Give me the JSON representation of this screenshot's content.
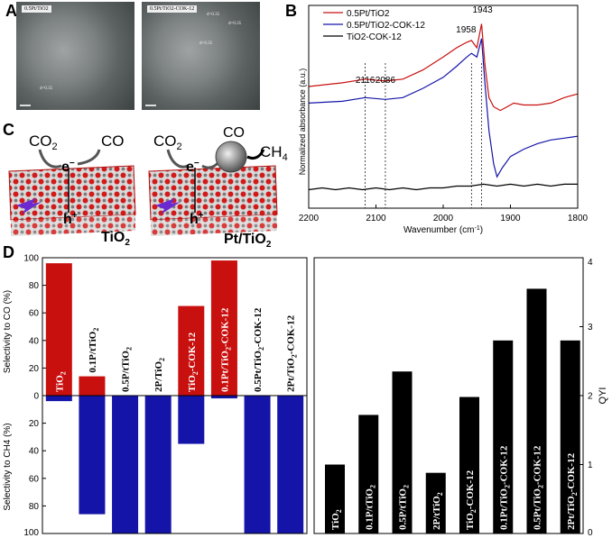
{
  "panels": {
    "a": {
      "label": "A",
      "images": [
        {
          "caption": "0.5Pt/TiO2",
          "d_spacings": [
            "d=0.35"
          ]
        },
        {
          "caption": "0.5Pt/TiO2-COK-12",
          "d_spacings": [
            "d=0.35",
            "d=0.35",
            "d=0.35"
          ]
        }
      ]
    },
    "b": {
      "label": "B"
    },
    "c": {
      "label": "C",
      "left": {
        "molecule_in": "CO",
        "molecule_in_sub": "2",
        "molecule_out": "CO",
        "electron": "e",
        "electron_sup": "−",
        "hole": "h",
        "hole_sup": "+",
        "material": "TiO",
        "material_sub": "2"
      },
      "right": {
        "molecule_in": "CO",
        "molecule_in_sub": "2",
        "adsorbed": "CO",
        "product": "CH",
        "product_sub": "4",
        "electron": "e",
        "electron_sup": "−",
        "hole": "h",
        "hole_sup": "+",
        "material": "Pt/TiO",
        "material_sub": "2"
      }
    },
    "d": {
      "label": "D"
    }
  },
  "colors": {
    "red": "#c8100f",
    "blue": "#1414a8",
    "black": "#000000"
  },
  "chart_data": [
    {
      "type": "line",
      "xlabel": "Wavenumber (cm",
      "xlabel_sup": "-1",
      "xlabel_tail": ")",
      "ylabel": "Normalized absorbance (a.u.)",
      "xlim": [
        2200,
        1800
      ],
      "xticks": [
        "2200",
        "2100",
        "2000",
        "1900",
        "1800"
      ],
      "legend": [
        "0.5Pt/TiO2",
        "0.5Pt/TiO2-COK-12",
        "TiO2-COK-12"
      ],
      "annotations": [
        "2116",
        "2086",
        "1958",
        "1943"
      ],
      "series": [
        {
          "name": "0.5Pt/TiO2",
          "x": [
            2200,
            2150,
            2116,
            2086,
            2060,
            2030,
            2000,
            1980,
            1965,
            1958,
            1950,
            1943,
            1938,
            1932,
            1925,
            1915,
            1905,
            1895,
            1880,
            1860,
            1840,
            1820,
            1800
          ],
          "y": [
            0.66,
            0.68,
            0.7,
            0.69,
            0.7,
            0.75,
            0.82,
            0.87,
            0.9,
            0.91,
            0.87,
            1.0,
            0.78,
            0.6,
            0.55,
            0.53,
            0.55,
            0.57,
            0.56,
            0.56,
            0.57,
            0.6,
            0.62
          ]
        },
        {
          "name": "0.5Pt/TiO2-COK-12",
          "x": [
            2200,
            2150,
            2116,
            2086,
            2060,
            2030,
            2000,
            1980,
            1965,
            1958,
            1950,
            1943,
            1938,
            1932,
            1925,
            1920,
            1912,
            1900,
            1880,
            1860,
            1840,
            1820,
            1800
          ],
          "y": [
            0.57,
            0.58,
            0.6,
            0.59,
            0.6,
            0.65,
            0.71,
            0.77,
            0.82,
            0.84,
            0.82,
            0.92,
            0.68,
            0.42,
            0.24,
            0.17,
            0.22,
            0.28,
            0.32,
            0.35,
            0.37,
            0.38,
            0.39
          ]
        },
        {
          "name": "TiO2-COK-12",
          "x": [
            2200,
            2180,
            2160,
            2140,
            2120,
            2100,
            2080,
            2060,
            2040,
            2020,
            2000,
            1980,
            1960,
            1940,
            1920,
            1900,
            1880,
            1860,
            1840,
            1820,
            1800
          ],
          "y": [
            0.1,
            0.11,
            0.1,
            0.11,
            0.1,
            0.11,
            0.1,
            0.11,
            0.1,
            0.11,
            0.11,
            0.12,
            0.12,
            0.13,
            0.12,
            0.13,
            0.12,
            0.13,
            0.12,
            0.13,
            0.13
          ]
        }
      ],
      "ylim": [
        0,
        1.1
      ]
    },
    {
      "type": "bar",
      "categories": [
        {
          "main": "TiO",
          "sub": "2",
          "tail": ""
        },
        {
          "main": "0.1P/tTiO",
          "sub": "2",
          "tail": ""
        },
        {
          "main": "0.5P/tTiO",
          "sub": "2",
          "tail": ""
        },
        {
          "main": "2P/TiO",
          "sub": "2",
          "tail": ""
        },
        {
          "main": "TiO",
          "sub": "2",
          "tail": "-COK-12"
        },
        {
          "main": "0.1Pt/TiO",
          "sub": "2",
          "tail": "-COK-12"
        },
        {
          "main": "0.5Pt/TiO",
          "sub": "2",
          "tail": "-COK-12"
        },
        {
          "main": "2Pt/TiO",
          "sub": "2",
          "tail": "-COK-12"
        }
      ],
      "series": [
        {
          "name": "Selectivity to CO",
          "values": [
            96,
            14,
            0,
            0,
            65,
            98,
            0,
            0
          ]
        },
        {
          "name": "Selectivity to CH4",
          "values": [
            4,
            86,
            100,
            100,
            35,
            2,
            100,
            100
          ]
        }
      ],
      "ylabel_top": "Selectivity to CO (%)",
      "ylabel_bottom": "Selectivity to CH4 (%)",
      "ylim_top": [
        0,
        100
      ],
      "ylim_bottom": [
        0,
        100
      ],
      "yticks_top": [
        "100",
        "80",
        "60",
        "40",
        "20",
        "0"
      ],
      "yticks_bottom": [
        "20",
        "40",
        "60",
        "80",
        "100"
      ]
    },
    {
      "type": "bar",
      "categories": [
        {
          "main": "TiO",
          "sub": "2",
          "tail": ""
        },
        {
          "main": "0.1P/tTiO",
          "sub": "2",
          "tail": ""
        },
        {
          "main": "0.5P/tTiO",
          "sub": "2",
          "tail": ""
        },
        {
          "main": "2P/tTiO",
          "sub": "2",
          "tail": ""
        },
        {
          "main": "TiO",
          "sub": "2",
          "tail": "-COK-12"
        },
        {
          "main": "0.1Pt/TiO",
          "sub": "2",
          "tail": "-COK-12"
        },
        {
          "main": "0.5Pt/TiO",
          "sub": "2",
          "tail": "-COK-12"
        },
        {
          "main": "2Pt/TiO",
          "sub": "2",
          "tail": "-COK-12"
        }
      ],
      "values": [
        1.0,
        1.72,
        2.35,
        0.88,
        1.98,
        2.8,
        3.55,
        2.8
      ],
      "ylabel": "QYI",
      "ylim": [
        0,
        4
      ],
      "yticks": [
        "0",
        "1",
        "2",
        "3",
        "4"
      ]
    }
  ]
}
